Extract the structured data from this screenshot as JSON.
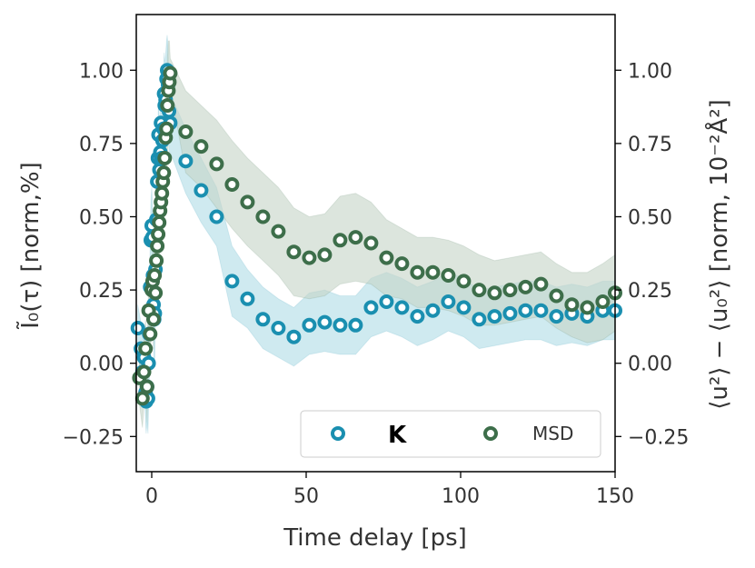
{
  "chart_data": {
    "type": "scatter",
    "xlabel": "Time delay [ps]",
    "ylabel_left": "Ĩ₀(τ) [norm,%]",
    "ylabel_right": "⟨u²⟩ − ⟨u₀²⟩ [norm, 10⁻²Å²]",
    "xlim": [
      -5,
      150
    ],
    "ylim_left": [
      -0.37,
      1.19
    ],
    "ylim_right": [
      -0.37,
      1.19
    ],
    "xticks": [
      0,
      50,
      100,
      150
    ],
    "yticks_left": [
      -0.25,
      0.0,
      0.25,
      0.5,
      0.75,
      1.0
    ],
    "yticks_right": [
      -0.25,
      0.0,
      0.25,
      0.5,
      0.75,
      1.0
    ],
    "tick_labels_x": [
      "0",
      "50",
      "100",
      "150"
    ],
    "tick_labels_left": [
      "−0.25",
      "0.00",
      "0.25",
      "0.50",
      "0.75",
      "1.00"
    ],
    "tick_labels_right": [
      "−0.25",
      "0.00",
      "0.25",
      "0.50",
      "0.75",
      "1.00"
    ],
    "legend": {
      "placement": "bottom-right",
      "entries": [
        "K",
        "MSD"
      ]
    },
    "series": [
      {
        "name": "K",
        "color": "#1a8fb0",
        "band_color": "#a8d8e4",
        "x": [
          -4.5,
          -3.5,
          -3,
          -2.5,
          -2,
          -1.8,
          -1.5,
          -1.2,
          -1,
          -0.8,
          -0.5,
          -0.3,
          0,
          0.2,
          0.4,
          0.6,
          0.8,
          1,
          1.2,
          1.5,
          1.8,
          2,
          2.2,
          2.5,
          2.8,
          3,
          3.2,
          3.5,
          3.8,
          4,
          4.2,
          4.5,
          4.8,
          5,
          5.3,
          5.6,
          6,
          11,
          16,
          21,
          26,
          31,
          36,
          41,
          46,
          51,
          56,
          61,
          66,
          71,
          76,
          81,
          86,
          91,
          96,
          101,
          106,
          111,
          116,
          121,
          126,
          131,
          136,
          141,
          146,
          150
        ],
        "y": [
          0.12,
          0.05,
          -0.03,
          0.02,
          -0.1,
          -0.13,
          -0.08,
          -0.12,
          0.0,
          0.1,
          0.26,
          0.42,
          0.47,
          0.43,
          0.3,
          0.2,
          0.15,
          0.17,
          0.32,
          0.49,
          0.62,
          0.7,
          0.78,
          0.66,
          0.72,
          0.82,
          0.7,
          0.76,
          0.8,
          0.92,
          0.88,
          0.9,
          0.97,
          1.0,
          0.95,
          0.86,
          0.82,
          0.69,
          0.59,
          0.5,
          0.28,
          0.22,
          0.15,
          0.12,
          0.09,
          0.13,
          0.14,
          0.13,
          0.13,
          0.19,
          0.21,
          0.19,
          0.16,
          0.18,
          0.21,
          0.19,
          0.15,
          0.16,
          0.17,
          0.18,
          0.18,
          0.16,
          0.17,
          0.16,
          0.18,
          0.18
        ],
        "band_upper": [
          0.2,
          0.14,
          0.08,
          0.1,
          0.02,
          -0.02,
          0.03,
          0.0,
          0.15,
          0.28,
          0.4,
          0.55,
          0.6,
          0.55,
          0.45,
          0.35,
          0.3,
          0.33,
          0.45,
          0.62,
          0.74,
          0.82,
          0.9,
          0.82,
          0.86,
          0.94,
          0.86,
          0.9,
          0.95,
          1.06,
          1.03,
          1.05,
          1.1,
          1.12,
          1.08,
          1.0,
          0.92,
          0.8,
          0.7,
          0.6,
          0.4,
          0.32,
          0.26,
          0.22,
          0.19,
          0.24,
          0.25,
          0.23,
          0.23,
          0.29,
          0.31,
          0.29,
          0.26,
          0.28,
          0.31,
          0.29,
          0.25,
          0.26,
          0.27,
          0.28,
          0.28,
          0.26,
          0.27,
          0.26,
          0.28,
          0.28
        ],
        "band_lower": [
          0.04,
          -0.04,
          -0.14,
          -0.06,
          -0.2,
          -0.24,
          -0.2,
          -0.24,
          -0.14,
          -0.08,
          0.12,
          0.28,
          0.34,
          0.31,
          0.15,
          0.05,
          0.0,
          0.02,
          0.18,
          0.36,
          0.5,
          0.58,
          0.66,
          0.5,
          0.58,
          0.7,
          0.56,
          0.62,
          0.66,
          0.78,
          0.74,
          0.76,
          0.84,
          0.88,
          0.82,
          0.72,
          0.72,
          0.58,
          0.48,
          0.4,
          0.16,
          0.12,
          0.05,
          0.02,
          -0.01,
          0.03,
          0.04,
          0.03,
          0.03,
          0.09,
          0.11,
          0.09,
          0.06,
          0.08,
          0.11,
          0.09,
          0.05,
          0.06,
          0.07,
          0.08,
          0.08,
          0.06,
          0.07,
          0.06,
          0.08,
          0.08
        ]
      },
      {
        "name": "MSD",
        "color": "#3d6e4a",
        "band_color": "#c5d3c6",
        "x": [
          -4,
          -3,
          -2.5,
          -2,
          -1.5,
          -1,
          -0.5,
          0,
          0.3,
          0.6,
          0.9,
          1.2,
          1.5,
          1.8,
          2.1,
          2.4,
          2.7,
          3,
          3.3,
          3.6,
          3.9,
          4.2,
          4.5,
          4.8,
          5.1,
          5.4,
          5.7,
          6,
          11,
          16,
          21,
          26,
          31,
          36,
          41,
          46,
          51,
          56,
          61,
          66,
          71,
          76,
          81,
          86,
          91,
          96,
          101,
          106,
          111,
          116,
          121,
          126,
          131,
          136,
          141,
          146,
          150
        ],
        "y": [
          -0.05,
          -0.12,
          -0.03,
          0.05,
          -0.08,
          0.18,
          0.1,
          0.25,
          0.28,
          0.15,
          0.3,
          0.24,
          0.35,
          0.4,
          0.44,
          0.48,
          0.52,
          0.55,
          0.58,
          0.62,
          0.65,
          0.7,
          0.77,
          0.8,
          0.88,
          0.93,
          0.96,
          0.99,
          0.79,
          0.74,
          0.68,
          0.61,
          0.55,
          0.5,
          0.45,
          0.38,
          0.36,
          0.37,
          0.42,
          0.43,
          0.41,
          0.36,
          0.34,
          0.31,
          0.31,
          0.3,
          0.28,
          0.25,
          0.24,
          0.25,
          0.26,
          0.27,
          0.23,
          0.2,
          0.19,
          0.21,
          0.24
        ],
        "band_upper": [
          0.06,
          -0.02,
          0.08,
          0.15,
          0.05,
          0.28,
          0.2,
          0.35,
          0.38,
          0.26,
          0.4,
          0.34,
          0.46,
          0.5,
          0.55,
          0.6,
          0.64,
          0.68,
          0.72,
          0.76,
          0.8,
          0.84,
          0.92,
          0.96,
          1.04,
          1.1,
          1.1,
          1.04,
          0.93,
          0.88,
          0.83,
          0.76,
          0.7,
          0.65,
          0.6,
          0.53,
          0.5,
          0.51,
          0.57,
          0.58,
          0.55,
          0.49,
          0.46,
          0.43,
          0.43,
          0.42,
          0.4,
          0.37,
          0.35,
          0.36,
          0.37,
          0.38,
          0.34,
          0.31,
          0.31,
          0.34,
          0.37
        ],
        "band_lower": [
          -0.14,
          -0.22,
          -0.14,
          -0.05,
          -0.2,
          0.08,
          0.0,
          0.15,
          0.18,
          0.05,
          0.2,
          0.14,
          0.24,
          0.3,
          0.33,
          0.36,
          0.4,
          0.42,
          0.44,
          0.48,
          0.5,
          0.56,
          0.62,
          0.64,
          0.72,
          0.76,
          0.82,
          0.94,
          0.65,
          0.6,
          0.53,
          0.46,
          0.4,
          0.35,
          0.3,
          0.23,
          0.22,
          0.23,
          0.27,
          0.28,
          0.27,
          0.23,
          0.22,
          0.19,
          0.19,
          0.18,
          0.16,
          0.13,
          0.13,
          0.14,
          0.15,
          0.16,
          0.12,
          0.09,
          0.07,
          0.08,
          0.11
        ]
      }
    ]
  }
}
